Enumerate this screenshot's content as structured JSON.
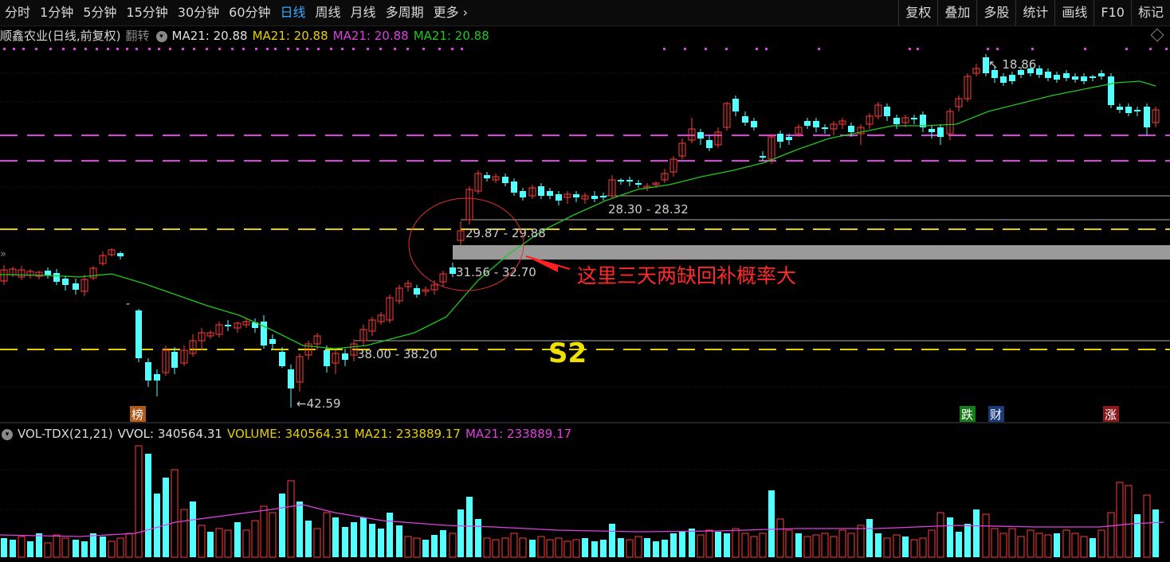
{
  "toolbar": {
    "periods": [
      "分时",
      "1分钟",
      "5分钟",
      "15分钟",
      "30分钟",
      "60分钟",
      "日线",
      "周线",
      "月线",
      "多周期",
      "更多"
    ],
    "active": "日线",
    "more_chevron": "›",
    "right": [
      "复权",
      "叠加",
      "多股",
      "统计",
      "画线",
      "F10",
      "标记"
    ]
  },
  "main_info": {
    "title": "顺鑫农业(日线,前复权)",
    "flip": "翻转",
    "ma_white": "MA21: 20.88",
    "ma_yellow": "MA21: 20.88",
    "ma_magenta": "MA21: 20.88",
    "ma_green": "MA21: 20.88"
  },
  "vol_info": {
    "name": "VOL-TDX(21,21)",
    "vvol": "VVOL: 340564.31",
    "volume": "VOLUME: 340564.31",
    "ma_yellow": "MA21: 233889.17",
    "ma_magenta": "MA21: 233889.17"
  },
  "annotations": {
    "note": "这里三天两缺回补概率大",
    "s2": "S2",
    "gap1": "29.87 - 29.88",
    "gap2": "31.56 - 32.70",
    "gap3": "28.30 - 28.32",
    "gap4": "38.00 - 38.20",
    "low_mark": "42.59",
    "high_mark": "18.86",
    "dash_mark": "-",
    "tag_bang": "榜",
    "tag_die": "跌",
    "tag_cai": "财",
    "tag_zhang": "涨"
  },
  "colors": {
    "up": "#ff3b3b",
    "down": "#54ffff",
    "ma": "#1ec81e",
    "vol_ma": "#e040e0",
    "yellow_line": "#e8d000",
    "magenta_line": "#e040e0",
    "active_tab": "#38a8ff"
  }
}
